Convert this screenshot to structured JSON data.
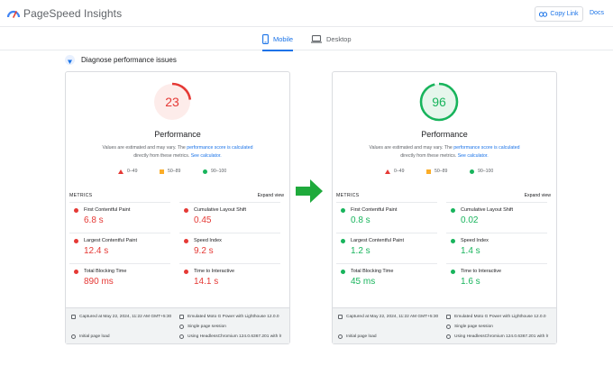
{
  "app": {
    "title": "PageSpeed Insights"
  },
  "header": {
    "copy_link": "Copy Link",
    "docs": "Docs"
  },
  "tabs": [
    {
      "label": "Mobile",
      "active": true
    },
    {
      "label": "Desktop",
      "active": false
    }
  ],
  "diagnose": {
    "title": "Diagnose performance issues"
  },
  "colors": {
    "fail": "#e53935",
    "average": "#fbad28",
    "pass": "#18b45c",
    "link": "#1a73e8"
  },
  "panels": [
    {
      "score": "23",
      "score_fraction": 0.23,
      "status": "fail",
      "title": "Performance",
      "desc_prefix": "Values are estimated and may vary. The ",
      "desc_link1": "performance score is calculated",
      "desc_middle": " directly from these metrics. ",
      "desc_link2": "See calculator.",
      "legend": {
        "fail": "0–49",
        "average": "50–89",
        "pass": "90–100"
      },
      "metrics_label": "METRICS",
      "expand_view": "Expand view",
      "metrics": [
        {
          "name": "First Contentful Paint",
          "value": "6.8 s",
          "status": "fail"
        },
        {
          "name": "Cumulative Layout Shift",
          "value": "0.45",
          "status": "fail"
        },
        {
          "name": "Largest Contentful Paint",
          "value": "12.4 s",
          "status": "fail"
        },
        {
          "name": "Speed Index",
          "value": "9.2 s",
          "status": "fail"
        },
        {
          "name": "Total Blocking Time",
          "value": "890 ms",
          "status": "fail"
        },
        {
          "name": "Time to Interactive",
          "value": "14.1 s",
          "status": "fail"
        }
      ],
      "footer": {
        "captured": "Captured at May 22, 2024, 11:22 AM GMT+5:30",
        "emulated": "Emulated Moto G Power with Lighthouse 12.0.0",
        "session": "Single page session",
        "initial": "Initial page load",
        "browser": "Using HeadlessChromium 124.0.6367.201 with lr"
      }
    },
    {
      "score": "96",
      "score_fraction": 0.96,
      "status": "pass",
      "title": "Performance",
      "desc_prefix": "Values are estimated and may vary. The ",
      "desc_link1": "performance score is calculated",
      "desc_middle": " directly from these metrics. ",
      "desc_link2": "See calculator.",
      "legend": {
        "fail": "0–49",
        "average": "50–89",
        "pass": "90–100"
      },
      "metrics_label": "METRICS",
      "expand_view": "Expand view",
      "metrics": [
        {
          "name": "First Contentful Paint",
          "value": "0.8 s",
          "status": "pass"
        },
        {
          "name": "Cumulative Layout Shift",
          "value": "0.02",
          "status": "pass"
        },
        {
          "name": "Largest Contentful Paint",
          "value": "1.2 s",
          "status": "pass"
        },
        {
          "name": "Speed Index",
          "value": "1.4 s",
          "status": "pass"
        },
        {
          "name": "Total Blocking Time",
          "value": "45 ms",
          "status": "pass"
        },
        {
          "name": "Time to Interactive",
          "value": "1.6 s",
          "status": "pass"
        }
      ],
      "footer": {
        "captured": "Captured at May 22, 2024, 11:22 AM GMT+5:30",
        "emulated": "Emulated Moto G Power with Lighthouse 12.0.0",
        "session": "Single page session",
        "initial": "Initial page load",
        "browser": "Using HeadlessChromium 124.0.6367.201 with lr"
      }
    }
  ]
}
